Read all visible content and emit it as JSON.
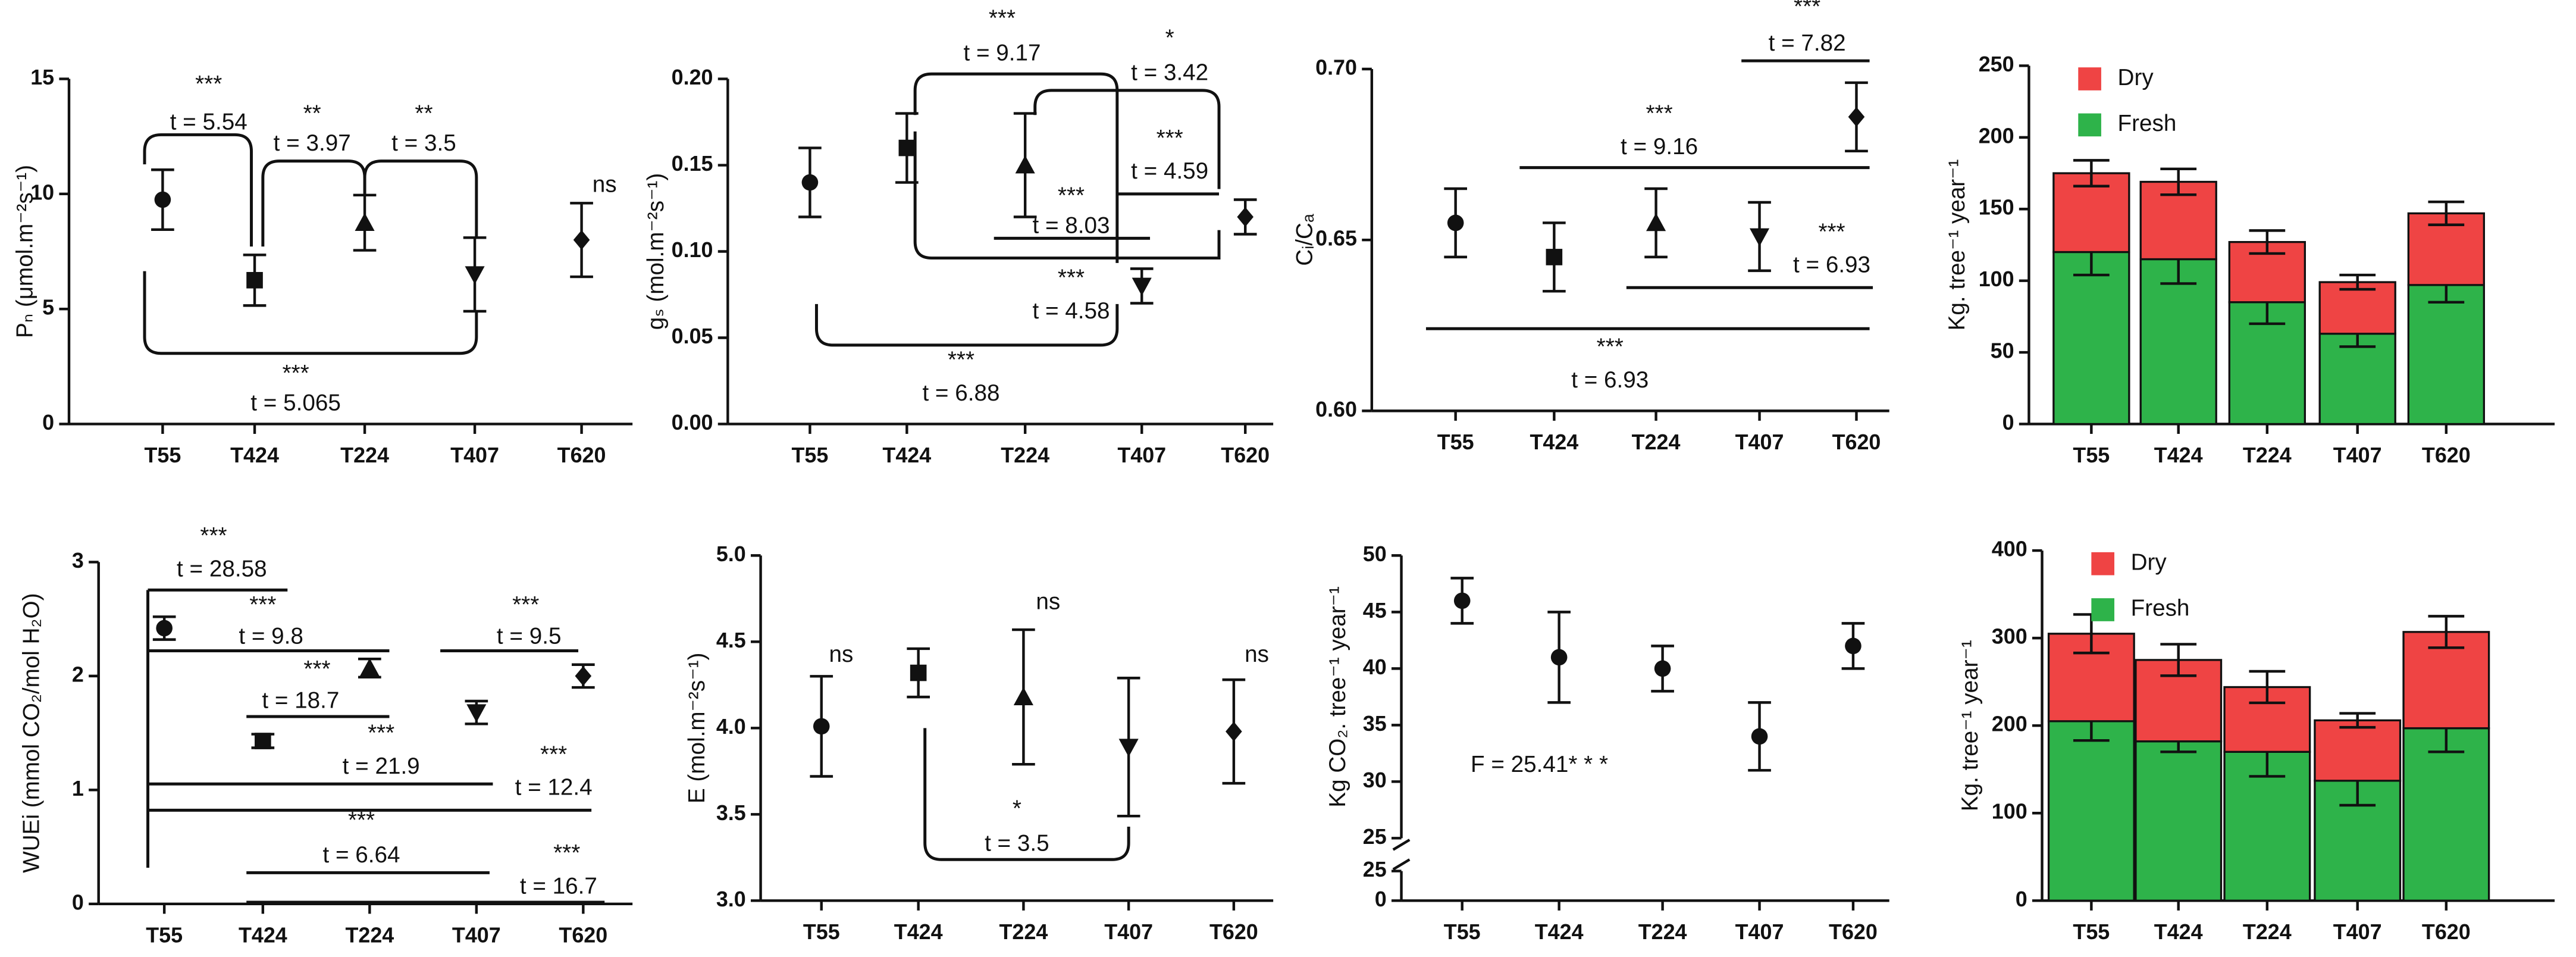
{
  "chart_data": [
    {
      "type": "errorbar",
      "y_label": "Pₙ (μmol.m⁻²s⁻¹)",
      "categories": [
        "T55",
        "T424",
        "T224",
        "T407",
        "T620"
      ],
      "values": [
        9.75,
        6.25,
        8.75,
        6.5,
        8.0
      ],
      "errors": [
        1.3,
        1.1,
        1.2,
        1.6,
        1.6
      ],
      "markers": [
        "circle",
        "square",
        "triangle-up",
        "triangle-down",
        "diamond"
      ],
      "color": "#111111",
      "ylim": [
        0,
        15
      ],
      "yticks": [
        0,
        5,
        10,
        15
      ],
      "annotations": [
        {
          "sig": "***",
          "label": "t = 5.54"
        },
        {
          "sig": "**",
          "label": "t = 3.97"
        },
        {
          "sig": "**",
          "label": "t = 3.5"
        },
        {
          "sig": "ns"
        },
        {
          "sig": "***",
          "label": "t = 5.065"
        }
      ]
    },
    {
      "type": "errorbar",
      "y_label": "gₛ (mol.m⁻²s⁻¹)",
      "categories": [
        "T55",
        "T424",
        "T224",
        "T407",
        "T620"
      ],
      "values": [
        0.14,
        0.16,
        0.15,
        0.08,
        0.12
      ],
      "errors": [
        0.02,
        0.02,
        0.03,
        0.01,
        0.01
      ],
      "markers": [
        "circle",
        "square",
        "triangle-up",
        "triangle-down",
        "diamond"
      ],
      "color": "#111111",
      "ylim": [
        0,
        0.2
      ],
      "yticks": [
        {
          "value": 0,
          "label": "0.00"
        },
        0.05,
        {
          "value": 0.1,
          "label": "0.10"
        },
        0.15,
        {
          "value": 0.2,
          "label": "0.20"
        }
      ],
      "annotations": [
        {
          "sig": "***",
          "label": "t = 9.17"
        },
        {
          "sig": "*",
          "label": "t = 3.42"
        },
        {
          "sig": "***",
          "label": "t = 4.59"
        },
        {
          "sig": "***",
          "label": "t = 8.03"
        },
        {
          "sig": "***",
          "label": "t = 4.58"
        },
        {
          "sig": "***",
          "label": "t = 6.88"
        }
      ]
    },
    {
      "type": "errorbar",
      "y_label": "Cᵢ/Cₐ",
      "categories": [
        "T55",
        "T424",
        "T224",
        "T407",
        "T620"
      ],
      "values": [
        0.655,
        0.645,
        0.655,
        0.651,
        0.686
      ],
      "errors": [
        0.01,
        0.01,
        0.01,
        0.01,
        0.01
      ],
      "markers": [
        "circle",
        "square",
        "triangle-up",
        "triangle-down",
        "diamond"
      ],
      "color": "#111111",
      "ylim": [
        0.6,
        0.7
      ],
      "yticks": [
        {
          "value": 0.6,
          "label": "0.60"
        },
        0.65,
        {
          "value": 0.7,
          "label": "0.70"
        }
      ],
      "annotations": [
        {
          "sig": "***",
          "label": "t = 7.82"
        },
        {
          "sig": "***",
          "label": "t = 9.16"
        },
        {
          "sig": "***",
          "label": "t = 6.93"
        },
        {
          "sig": "***",
          "label": "t = 6.93"
        }
      ]
    },
    {
      "type": "stacked_bar",
      "y_label": "Kg. tree⁻¹ year⁻¹",
      "categories": [
        "T55",
        "T424",
        "T224",
        "T407",
        "T620"
      ],
      "series": [
        {
          "name": "Fresh",
          "color": "#2eb34a",
          "values": [
            120,
            115,
            85,
            63,
            97
          ],
          "errors": [
            16,
            17,
            15,
            9,
            12
          ]
        },
        {
          "name": "Dry",
          "color": "#ef4444",
          "values": [
            55,
            54,
            42,
            36,
            50
          ],
          "errors": [
            9,
            9,
            8,
            5,
            8
          ]
        }
      ],
      "legend": "top-left",
      "ylim": [
        0,
        250
      ],
      "yticks": [
        0,
        50,
        100,
        150,
        200,
        250
      ]
    },
    {
      "type": "errorbar",
      "y_label": "WUEi (mmol CO₂/mol H₂O)",
      "categories": [
        "T55",
        "T424",
        "T224",
        "T407",
        "T620"
      ],
      "values": [
        2.42,
        1.43,
        2.07,
        1.68,
        2.0
      ],
      "errors": [
        0.1,
        0.06,
        0.08,
        0.1,
        0.1
      ],
      "markers": [
        "circle",
        "square",
        "triangle-up",
        "triangle-down",
        "diamond"
      ],
      "color": "#111111",
      "ylim": [
        0,
        3
      ],
      "yticks": [
        0,
        1,
        2,
        3
      ],
      "annotations": [
        {
          "sig": "***",
          "label": "t = 28.58"
        },
        {
          "sig": "***",
          "label": "t = 9.8"
        },
        {
          "sig": "***",
          "label": "t = 9.5"
        },
        {
          "sig": "***",
          "label": "t = 18.7"
        },
        {
          "sig": "***",
          "label": "t = 21.9"
        },
        {
          "sig": "***",
          "label": "t = 12.4"
        },
        {
          "sig": "***",
          "label": "t = 6.64"
        },
        {
          "sig": "***",
          "label": "t = 16.7"
        }
      ]
    },
    {
      "type": "errorbar",
      "y_label": "E (mol.m⁻²s⁻¹)",
      "categories": [
        "T55",
        "T424",
        "T224",
        "T407",
        "T620"
      ],
      "values": [
        4.01,
        4.32,
        4.18,
        3.89,
        3.98
      ],
      "errors": [
        0.29,
        0.14,
        0.39,
        0.4,
        0.3
      ],
      "markers": [
        "circle",
        "square",
        "triangle-up",
        "triangle-down",
        "diamond"
      ],
      "color": "#111111",
      "ylim": [
        3,
        5
      ],
      "yticks": [
        {
          "value": 3,
          "label": "3.0"
        },
        3.5,
        {
          "value": 4,
          "label": "4.0"
        },
        4.5,
        {
          "value": 5,
          "label": "5.0"
        }
      ],
      "annotations": [
        {
          "sig": "ns"
        },
        {
          "sig": "ns"
        },
        {
          "sig": "ns"
        },
        {
          "sig": "*",
          "label": "t = 3.5"
        }
      ]
    },
    {
      "type": "errorbar",
      "y_label": "Kg CO₂. tree⁻¹ year⁻¹",
      "categories": [
        "T55",
        "T424",
        "T224",
        "T407",
        "T620"
      ],
      "values": [
        46,
        41,
        40,
        34,
        42
      ],
      "errors": [
        2,
        4,
        2,
        3,
        2
      ],
      "markers": [
        "circle",
        "circle",
        "circle",
        "circle",
        "circle"
      ],
      "color": "#111111",
      "ylim": [
        25,
        50
      ],
      "yticks": [
        25,
        30,
        35,
        40,
        45,
        50
      ],
      "ylim_lower": [
        0,
        25
      ],
      "yticks_lower": [
        0,
        25
      ],
      "annotations": [
        {
          "label": "F = 25.41* * *"
        }
      ]
    },
    {
      "type": "stacked_bar",
      "y_label": "Kg. tree⁻¹ year⁻¹",
      "categories": [
        "T55",
        "T424",
        "T224",
        "T407",
        "T620"
      ],
      "series": [
        {
          "name": "Fresh",
          "color": "#2eb34a",
          "values": [
            205,
            182,
            170,
            137,
            197
          ],
          "errors": [
            22,
            12,
            28,
            28,
            27
          ]
        },
        {
          "name": "Dry",
          "color": "#ef4444",
          "values": [
            100,
            93,
            74,
            69,
            110
          ],
          "errors": [
            22,
            18,
            18,
            8,
            18
          ]
        }
      ],
      "legend": "top-left",
      "ylim": [
        0,
        400
      ],
      "yticks": [
        0,
        100,
        200,
        300,
        400
      ]
    }
  ]
}
